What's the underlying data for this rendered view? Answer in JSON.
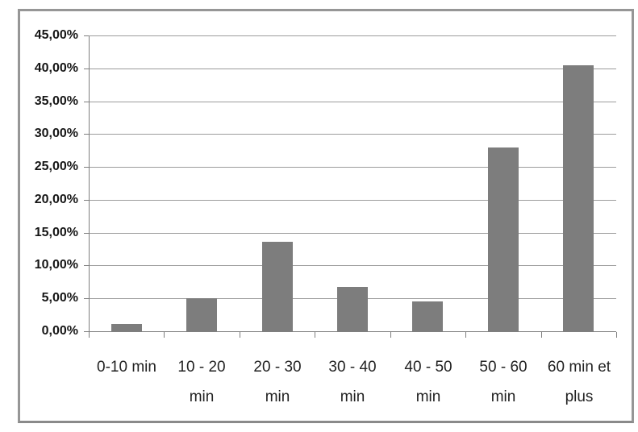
{
  "chart_data": {
    "type": "bar",
    "title": "",
    "xlabel": "",
    "ylabel": "",
    "categories": [
      "0-10 min",
      "10 - 20 min",
      "20 - 30 min",
      "30 - 40 min",
      "40 - 50 min",
      "50 - 60 min",
      "60 min et plus"
    ],
    "categories_display": [
      "0-10 min",
      "10 - 20\nmin",
      "20 - 30\nmin",
      "30 - 40\nmin",
      "40 - 50\nmin",
      "50 - 60\nmin",
      "60 min et\nplus"
    ],
    "values": [
      1.1,
      5.0,
      13.6,
      6.8,
      4.5,
      28.0,
      40.5
    ],
    "value_unit": "%",
    "ylim": [
      0,
      45
    ],
    "y_step": 5,
    "y_tick_labels": [
      "0,00%",
      "5,00%",
      "10,00%",
      "15,00%",
      "20,00%",
      "25,00%",
      "30,00%",
      "35,00%",
      "40,00%",
      "45,00%"
    ],
    "grid": true,
    "legend": false,
    "colors": {
      "bar": "#7d7d7d",
      "gridline": "#9c9c9c",
      "axis": "#7f7f7f",
      "frame_border": "#969696",
      "background": "#ffffff",
      "y_label_text": "#161616",
      "x_label_text": "#222222"
    }
  }
}
